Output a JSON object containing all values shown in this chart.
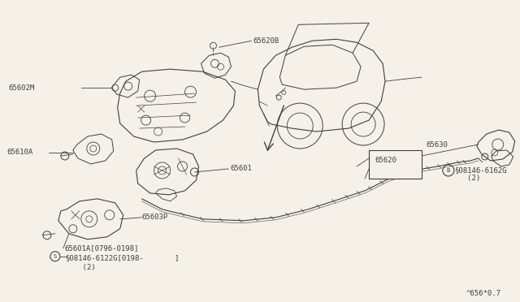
{
  "bg_color": "#f5f0e8",
  "line_color": "#404040",
  "fs": 6.5,
  "watermark": "^656*0.7",
  "label_65620B": "65620B",
  "label_65602M": "65602M",
  "label_65610A": "65610A",
  "label_65601": "65601",
  "label_65603P": "65603P",
  "label_65601A": "65601A[0796-0198]",
  "label_screw1": "§08146-6122G[0198-",
  "label_screw2": "    (2)",
  "label_bracket": "]",
  "label_65630": "65630",
  "label_65620": "65620",
  "label_bolt1": "§08146-6162G",
  "label_bolt2": "   (2)"
}
